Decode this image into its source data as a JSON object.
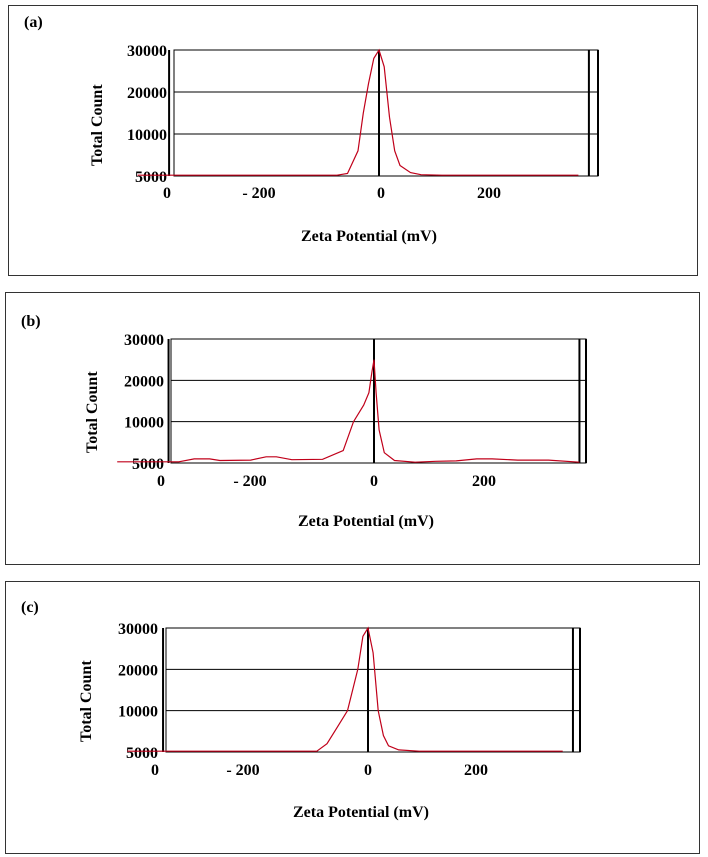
{
  "colors": {
    "line": "#c0001a",
    "grid": "#000000"
  },
  "chart_data": [
    {
      "type": "line",
      "panel_label": "(a)",
      "xlabel": "Zeta Potential (mV)",
      "ylabel": "Total Count",
      "x_ticks": [
        "0",
        "- 200",
        "0",
        "200"
      ],
      "y_ticks": [
        "30000",
        "20000",
        "10000",
        "5000"
      ],
      "xlim": [
        -400,
        400
      ],
      "ylim": [
        0,
        30000
      ],
      "series": [
        {
          "x": [
            -230,
            -40,
            -30,
            -20,
            -15,
            -10,
            -5,
            0,
            5,
            10,
            15,
            20,
            30,
            40,
            60,
            100,
            190
          ],
          "y": [
            200,
            200,
            600,
            6000,
            15000,
            22000,
            28000,
            30000,
            26000,
            14000,
            6000,
            2500,
            800,
            300,
            200,
            200,
            200
          ]
        }
      ]
    },
    {
      "type": "line",
      "panel_label": "(b)",
      "xlabel": "Zeta Potential (mV)",
      "ylabel": "Total Count",
      "x_ticks": [
        "0",
        "- 200",
        "0",
        "200"
      ],
      "y_ticks": [
        "30000",
        "20000",
        "10000",
        "5000"
      ],
      "xlim": [
        -400,
        400
      ],
      "ylim": [
        0,
        30000
      ],
      "series": [
        {
          "x": [
            -250,
            -190,
            -175,
            -160,
            -150,
            -120,
            -105,
            -95,
            -80,
            -50,
            -30,
            -20,
            -10,
            -5,
            -2,
            0,
            2,
            5,
            10,
            20,
            40,
            60,
            80,
            100,
            115,
            140,
            170,
            200
          ],
          "y": [
            300,
            300,
            1000,
            1000,
            600,
            700,
            1500,
            1500,
            800,
            900,
            3000,
            10000,
            14000,
            17000,
            22000,
            25000,
            17000,
            8000,
            2500,
            600,
            200,
            400,
            500,
            1000,
            1000,
            700,
            700,
            200
          ]
        }
      ]
    },
    {
      "type": "line",
      "panel_label": "(c)",
      "xlabel": "Zeta Potential (mV)",
      "ylabel": "Total Count",
      "x_ticks": [
        "0",
        "- 200",
        "0",
        "200"
      ],
      "y_ticks": [
        "30000",
        "20000",
        "10000",
        "5000"
      ],
      "xlim": [
        -400,
        400
      ],
      "ylim": [
        0,
        30000
      ],
      "series": [
        {
          "x": [
            -235,
            -50,
            -40,
            -30,
            -20,
            -10,
            -5,
            0,
            5,
            10,
            15,
            20,
            30,
            50,
            100,
            190
          ],
          "y": [
            200,
            200,
            2000,
            6000,
            10000,
            20000,
            28000,
            30000,
            24000,
            10000,
            4000,
            1500,
            500,
            200,
            200,
            200
          ]
        }
      ]
    }
  ]
}
